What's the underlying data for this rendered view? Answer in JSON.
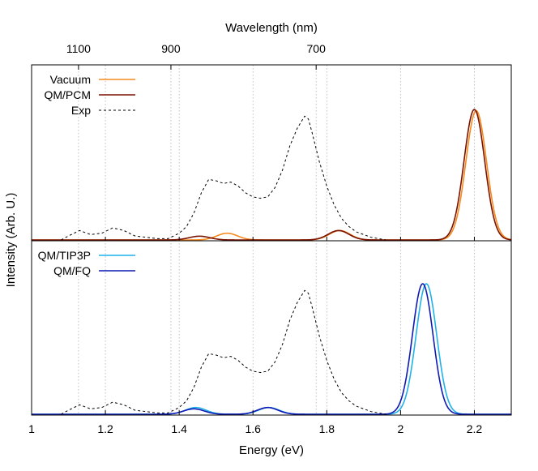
{
  "colors": {
    "vacuum": "#f58a1e",
    "qm_pcm": "#7a1200",
    "exp": "#000000",
    "qm_tip3p": "#1fb2ea",
    "qm_fq": "#0f1ab4",
    "grid": "#b0b0b0"
  },
  "chart_data": {
    "type": "line",
    "xlabel": "Energy (eV)",
    "ylabel": "Intensity (Arb. U.)",
    "x2label": "Wavelength (nm)",
    "xlim": [
      1.0,
      2.3
    ],
    "xticks": [
      1,
      1.2,
      1.4,
      1.6,
      1.8,
      2,
      2.2
    ],
    "xtick_labels": [
      "1",
      "1.2",
      "1.4",
      "1.6",
      "1.8",
      "2",
      "2.2"
    ],
    "x2ticks_nm": [
      1100,
      900,
      700
    ],
    "x2tick_labels": [
      "1100",
      "900",
      "700"
    ],
    "grid": true,
    "legend_position": "top-left",
    "panels": [
      {
        "name": "top",
        "ylim": [
          0,
          1.0
        ],
        "series": [
          {
            "name": "Vacuum",
            "color_key": "vacuum",
            "style": "solid",
            "peaks": [
              [
                1.53,
                0.05,
                0.028
              ],
              [
                1.835,
                0.07,
                0.028
              ],
              [
                2.205,
                0.96,
                0.028
              ]
            ]
          },
          {
            "name": "QM/PCM",
            "color_key": "qm_pcm",
            "style": "solid",
            "peaks": [
              [
                1.455,
                0.028,
                0.028
              ],
              [
                1.832,
                0.07,
                0.028
              ],
              [
                2.2,
                0.97,
                0.028
              ]
            ]
          },
          {
            "name": "Exp",
            "color_key": "exp",
            "style": "dashed",
            "x": [
              1.08,
              1.1,
              1.13,
              1.16,
              1.19,
              1.22,
              1.25,
              1.28,
              1.31,
              1.34,
              1.37,
              1.4,
              1.42,
              1.44,
              1.46,
              1.48,
              1.5,
              1.52,
              1.54,
              1.56,
              1.58,
              1.6,
              1.62,
              1.64,
              1.66,
              1.68,
              1.7,
              1.72,
              1.74,
              1.75,
              1.76,
              1.78,
              1.8,
              1.82,
              1.84,
              1.86,
              1.88,
              1.9,
              1.92,
              1.94,
              1.96
            ],
            "y": [
              0.0,
              0.03,
              0.07,
              0.04,
              0.05,
              0.09,
              0.07,
              0.03,
              0.02,
              0.01,
              0.01,
              0.05,
              0.1,
              0.2,
              0.35,
              0.45,
              0.44,
              0.42,
              0.43,
              0.4,
              0.35,
              0.32,
              0.31,
              0.32,
              0.39,
              0.52,
              0.7,
              0.83,
              0.92,
              0.9,
              0.8,
              0.58,
              0.4,
              0.26,
              0.16,
              0.1,
              0.06,
              0.04,
              0.02,
              0.01,
              0.0
            ]
          }
        ]
      },
      {
        "name": "bottom",
        "ylim": [
          0,
          1.0
        ],
        "series": [
          {
            "name": "QM/TIP3P",
            "color_key": "qm_tip3p",
            "style": "solid",
            "peaks": [
              [
                1.445,
                0.05,
                0.028
              ],
              [
                1.643,
                0.05,
                0.028
              ],
              [
                2.07,
                0.97,
                0.028
              ]
            ]
          },
          {
            "name": "QM/FQ",
            "color_key": "qm_fq",
            "style": "solid",
            "peaks": [
              [
                1.44,
                0.04,
                0.028
              ],
              [
                1.64,
                0.05,
                0.028
              ],
              [
                2.06,
                0.97,
                0.028
              ]
            ]
          },
          {
            "name": "Exp",
            "color_key": "exp",
            "style": "dashed",
            "show_in_legend": false,
            "x": [
              1.08,
              1.1,
              1.13,
              1.16,
              1.19,
              1.22,
              1.25,
              1.28,
              1.31,
              1.34,
              1.37,
              1.4,
              1.42,
              1.44,
              1.46,
              1.48,
              1.5,
              1.52,
              1.54,
              1.56,
              1.58,
              1.6,
              1.62,
              1.64,
              1.66,
              1.68,
              1.7,
              1.72,
              1.74,
              1.75,
              1.76,
              1.78,
              1.8,
              1.82,
              1.84,
              1.86,
              1.88,
              1.9,
              1.92,
              1.94,
              1.96
            ],
            "y": [
              0.0,
              0.03,
              0.07,
              0.04,
              0.05,
              0.09,
              0.07,
              0.03,
              0.02,
              0.01,
              0.01,
              0.05,
              0.1,
              0.2,
              0.35,
              0.45,
              0.44,
              0.42,
              0.43,
              0.4,
              0.35,
              0.32,
              0.31,
              0.32,
              0.39,
              0.52,
              0.7,
              0.83,
              0.92,
              0.9,
              0.8,
              0.58,
              0.4,
              0.26,
              0.16,
              0.1,
              0.06,
              0.04,
              0.02,
              0.01,
              0.0
            ]
          }
        ]
      }
    ]
  }
}
